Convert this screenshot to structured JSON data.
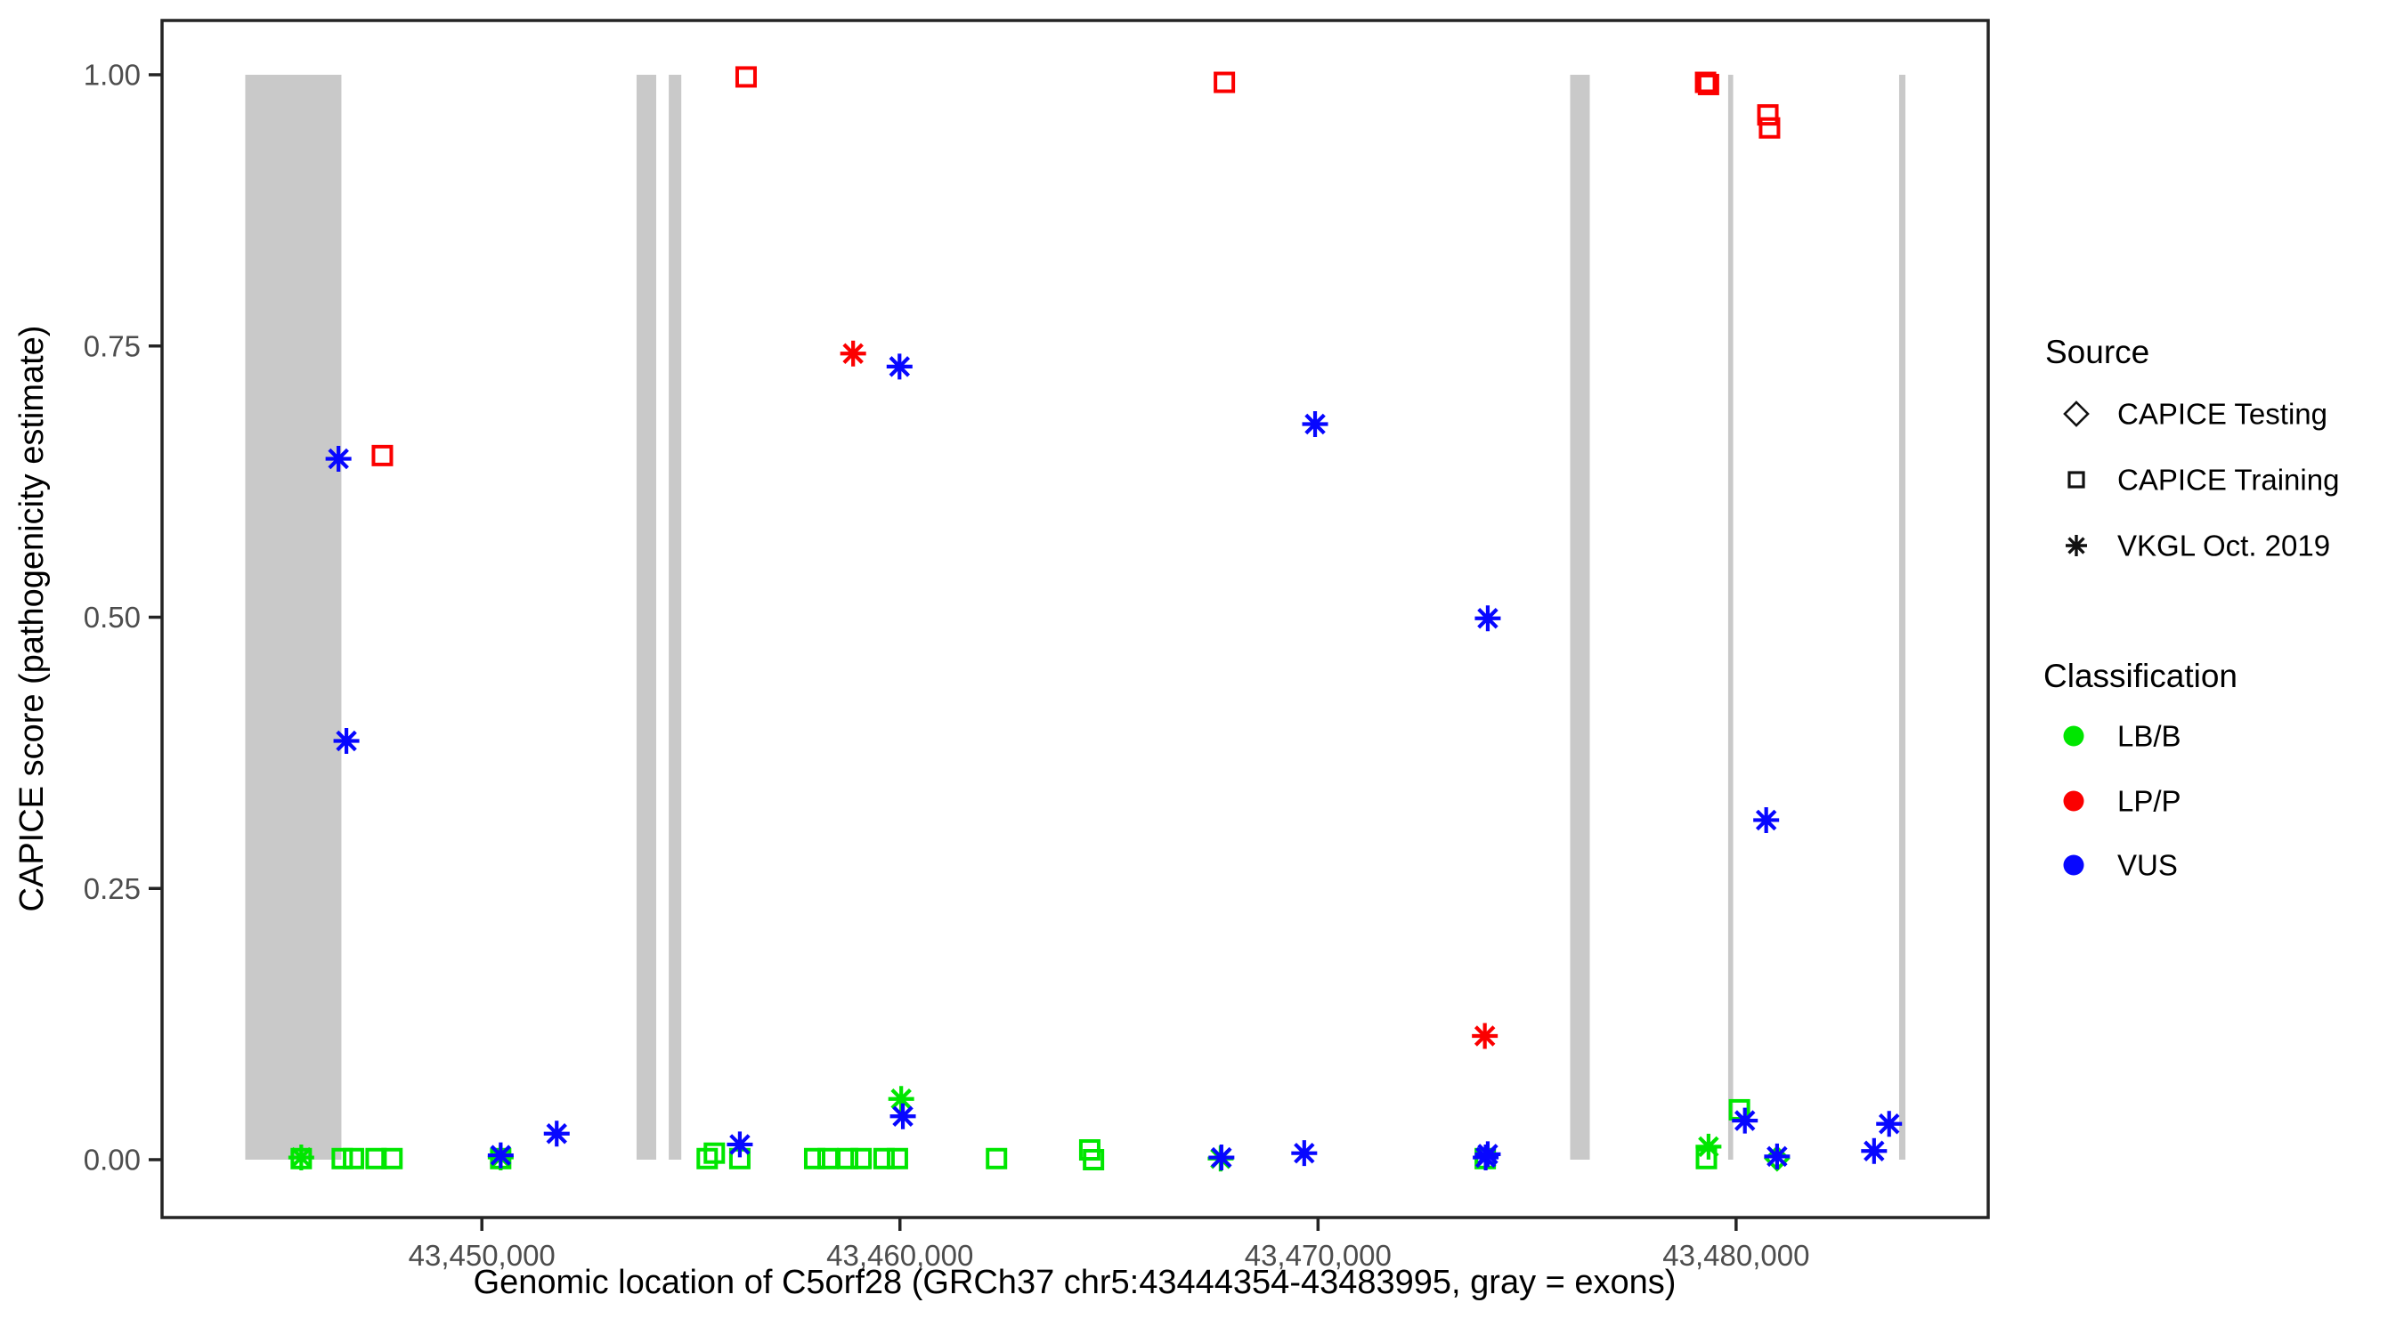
{
  "chart_data": {
    "type": "scatter",
    "title": "",
    "xlabel": "Genomic location of C5orf28 (GRCh37 chr5:43444354-43483995, gray = exons)",
    "ylabel": "CAPICE score (pathogenicity estimate)",
    "xlim": [
      43442350,
      43486030
    ],
    "ylim": [
      0,
      1
    ],
    "grid": false,
    "x_ticks": [
      {
        "value": 43450000,
        "label": "43,450,000"
      },
      {
        "value": 43460000,
        "label": "43,460,000"
      },
      {
        "value": 43470000,
        "label": "43,470,000"
      },
      {
        "value": 43480000,
        "label": "43,480,000"
      }
    ],
    "y_ticks": [
      {
        "value": 0.0,
        "label": "0.00"
      },
      {
        "value": 0.25,
        "label": "0.25"
      },
      {
        "value": 0.5,
        "label": "0.50"
      },
      {
        "value": 0.75,
        "label": "0.75"
      },
      {
        "value": 1.0,
        "label": "1.00"
      }
    ],
    "exons_note": "gray vertical bands mark exon regions spanning y 0 to 1",
    "exons": [
      [
        43444340,
        43446640
      ],
      [
        43453700,
        43454170
      ],
      [
        43454470,
        43454770
      ],
      [
        43476030,
        43476500
      ],
      [
        43479810,
        43479930
      ],
      [
        43483900,
        43484050
      ]
    ],
    "encoding": {
      "shape_by": "source",
      "color_by": "classification"
    },
    "shapes": {
      "CAPICE Testing": "diamond",
      "CAPICE Training": "square",
      "VKGL Oct. 2019": "asterisk"
    },
    "colors": {
      "LB/B": "#00e600",
      "LP/P": "#fb0000",
      "VUS": "#0707ff"
    },
    "columns": [
      "genomic_position",
      "capice_score",
      "source",
      "classification"
    ],
    "points": [
      [
        43445680,
        0.001,
        "CAPICE Training",
        "LB/B"
      ],
      [
        43445680,
        0.002,
        "VKGL Oct. 2019",
        "LB/B"
      ],
      [
        43446660,
        0.001,
        "CAPICE Training",
        "LB/B"
      ],
      [
        43446930,
        0.001,
        "CAPICE Training",
        "LB/B"
      ],
      [
        43447470,
        0.001,
        "CAPICE Training",
        "LB/B"
      ],
      [
        43447850,
        0.001,
        "CAPICE Training",
        "LB/B"
      ],
      [
        43446570,
        0.646,
        "VKGL Oct. 2019",
        "VUS"
      ],
      [
        43446760,
        0.386,
        "VKGL Oct. 2019",
        "VUS"
      ],
      [
        43447620,
        0.649,
        "CAPICE Training",
        "LP/P"
      ],
      [
        43450450,
        0.001,
        "CAPICE Training",
        "LB/B"
      ],
      [
        43450450,
        0.002,
        "VKGL Oct. 2019",
        "LB/B"
      ],
      [
        43450450,
        0.004,
        "VKGL Oct. 2019",
        "VUS"
      ],
      [
        43451790,
        0.024,
        "VKGL Oct. 2019",
        "VUS"
      ],
      [
        43455390,
        0.001,
        "CAPICE Training",
        "LB/B"
      ],
      [
        43455560,
        0.006,
        "CAPICE Training",
        "LB/B"
      ],
      [
        43456170,
        0.001,
        "CAPICE Training",
        "LB/B"
      ],
      [
        43456170,
        0.014,
        "VKGL Oct. 2019",
        "VUS"
      ],
      [
        43456320,
        0.998,
        "CAPICE Training",
        "LP/P"
      ],
      [
        43457960,
        0.001,
        "CAPICE Training",
        "LB/B"
      ],
      [
        43458280,
        0.001,
        "CAPICE Training",
        "LB/B"
      ],
      [
        43458750,
        0.001,
        "CAPICE Training",
        "LB/B"
      ],
      [
        43459070,
        0.001,
        "CAPICE Training",
        "LB/B"
      ],
      [
        43458880,
        0.743,
        "VKGL Oct. 2019",
        "LP/P"
      ],
      [
        43459620,
        0.001,
        "CAPICE Training",
        "LB/B"
      ],
      [
        43459940,
        0.001,
        "CAPICE Training",
        "LB/B"
      ],
      [
        43459990,
        0.731,
        "VKGL Oct. 2019",
        "VUS"
      ],
      [
        43460030,
        0.056,
        "VKGL Oct. 2019",
        "LB/B"
      ],
      [
        43460070,
        0.04,
        "VKGL Oct. 2019",
        "VUS"
      ],
      [
        43462310,
        0.001,
        "CAPICE Training",
        "LB/B"
      ],
      [
        43464540,
        0.009,
        "CAPICE Training",
        "LB/B"
      ],
      [
        43464630,
        0.0,
        "CAPICE Training",
        "LB/B"
      ],
      [
        43467670,
        0.001,
        "VKGL Oct. 2019",
        "LB/B"
      ],
      [
        43467690,
        0.002,
        "VKGL Oct. 2019",
        "VUS"
      ],
      [
        43467760,
        0.993,
        "CAPICE Training",
        "LP/P"
      ],
      [
        43469670,
        0.006,
        "VKGL Oct. 2019",
        "VUS"
      ],
      [
        43469930,
        0.678,
        "VKGL Oct. 2019",
        "VUS"
      ],
      [
        43473990,
        0.114,
        "VKGL Oct. 2019",
        "LP/P"
      ],
      [
        43474000,
        0.001,
        "CAPICE Training",
        "LB/B"
      ],
      [
        43474010,
        0.002,
        "VKGL Oct. 2019",
        "VUS"
      ],
      [
        43474060,
        0.005,
        "VKGL Oct. 2019",
        "VUS"
      ],
      [
        43474060,
        0.499,
        "VKGL Oct. 2019",
        "VUS"
      ],
      [
        43479270,
        0.993,
        "CAPICE Training",
        "LP/P"
      ],
      [
        43479340,
        0.991,
        "CAPICE Training",
        "LP/P"
      ],
      [
        43479290,
        0.001,
        "CAPICE Training",
        "LB/B"
      ],
      [
        43479340,
        0.012,
        "VKGL Oct. 2019",
        "LB/B"
      ],
      [
        43480080,
        0.046,
        "CAPICE Training",
        "LB/B"
      ],
      [
        43480210,
        0.036,
        "VKGL Oct. 2019",
        "VUS"
      ],
      [
        43480720,
        0.313,
        "VKGL Oct. 2019",
        "VUS"
      ],
      [
        43480760,
        0.963,
        "CAPICE Training",
        "LP/P"
      ],
      [
        43480800,
        0.951,
        "CAPICE Training",
        "LP/P"
      ],
      [
        43480980,
        0.001,
        "CAPICE Testing",
        "LB/B"
      ],
      [
        43480980,
        0.003,
        "VKGL Oct. 2019",
        "VUS"
      ],
      [
        43483300,
        0.008,
        "VKGL Oct. 2019",
        "VUS"
      ],
      [
        43483660,
        0.033,
        "VKGL Oct. 2019",
        "VUS"
      ]
    ]
  },
  "legend": {
    "source": {
      "title": "Source",
      "items": [
        {
          "label": "CAPICE Testing",
          "shape": "diamond"
        },
        {
          "label": "CAPICE Training",
          "shape": "square"
        },
        {
          "label": "VKGL Oct. 2019",
          "shape": "asterisk"
        }
      ]
    },
    "classification": {
      "title": "Classification",
      "items": [
        {
          "label": "LB/B",
          "color": "#00e600"
        },
        {
          "label": "LP/P",
          "color": "#fb0000"
        },
        {
          "label": "VUS",
          "color": "#0707ff"
        }
      ]
    }
  },
  "styles": {
    "exon_fill": "#c9c9c9",
    "panel_border": "#242424",
    "tick_color": "#242424",
    "tick_label_color": "#4d4d4d",
    "legend_marker_color": "#111111",
    "background": "#ffffff"
  }
}
